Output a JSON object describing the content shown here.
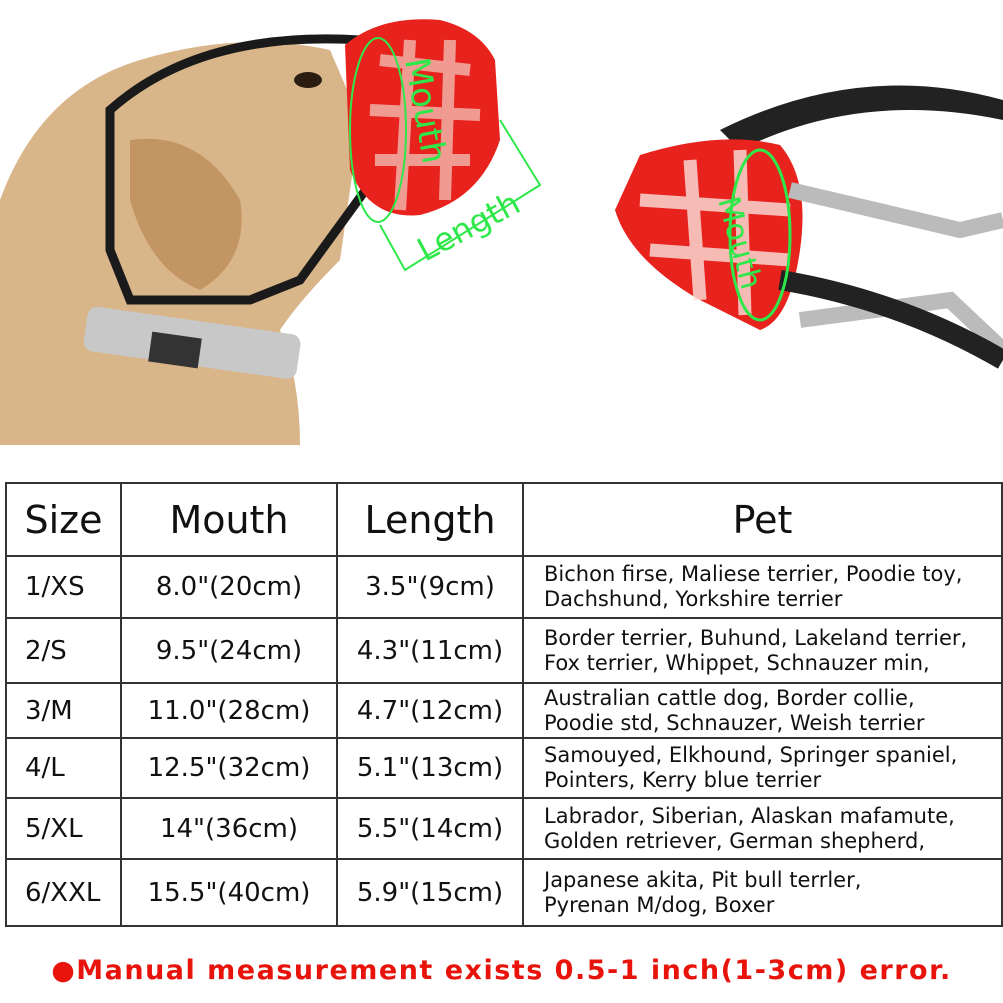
{
  "photo_labels": {
    "mouth": "Mouth",
    "length": "Length",
    "mouth2": "Mouth"
  },
  "colors": {
    "muzzle": "#e8231e",
    "measure": "#2ee84a",
    "note": "#e8140c"
  },
  "table": {
    "headers": [
      "Size",
      "Mouth",
      "Length",
      "Pet"
    ],
    "rows": [
      {
        "size": "1/XS",
        "mouth": "8.0\"(20cm)",
        "length": "3.5\"(9cm)",
        "pet1": "Bichon firse, Maliese terrier, Poodie toy,",
        "pet2": "Dachshund, Yorkshire terrier"
      },
      {
        "size": "2/S",
        "mouth": "9.5\"(24cm)",
        "length": "4.3\"(11cm)",
        "pet1": "Border terrier, Buhund, Lakeland terrier,",
        "pet2": "Fox terrier, Whippet, Schnauzer min,"
      },
      {
        "size": "3/M",
        "mouth": "11.0\"(28cm)",
        "length": "4.7\"(12cm)",
        "pet1": "Australian cattle dog,  Border collie,",
        "pet2": "Poodie std, Schnauzer, Weish terrier"
      },
      {
        "size": "4/L",
        "mouth": "12.5\"(32cm)",
        "length": "5.1\"(13cm)",
        "pet1": "Samouyed, Elkhound, Springer spaniel,",
        "pet2": "Pointers, Kerry blue terrier"
      },
      {
        "size": "5/XL",
        "mouth": "14\"(36cm)",
        "length": "5.5\"(14cm)",
        "pet1": "Labrador, Siberian, Alaskan mafamute,",
        "pet2": "Golden retriever, German shepherd,"
      },
      {
        "size": "6/XXL",
        "mouth": "15.5\"(40cm)",
        "length": "5.9\"(15cm)",
        "pet1": "Japanese akita, Pit bull terrler,",
        "pet2": "Pyrenan M/dog, Boxer"
      }
    ]
  },
  "note": "●Manual measurement exists 0.5-1 inch(1-3cm) error."
}
